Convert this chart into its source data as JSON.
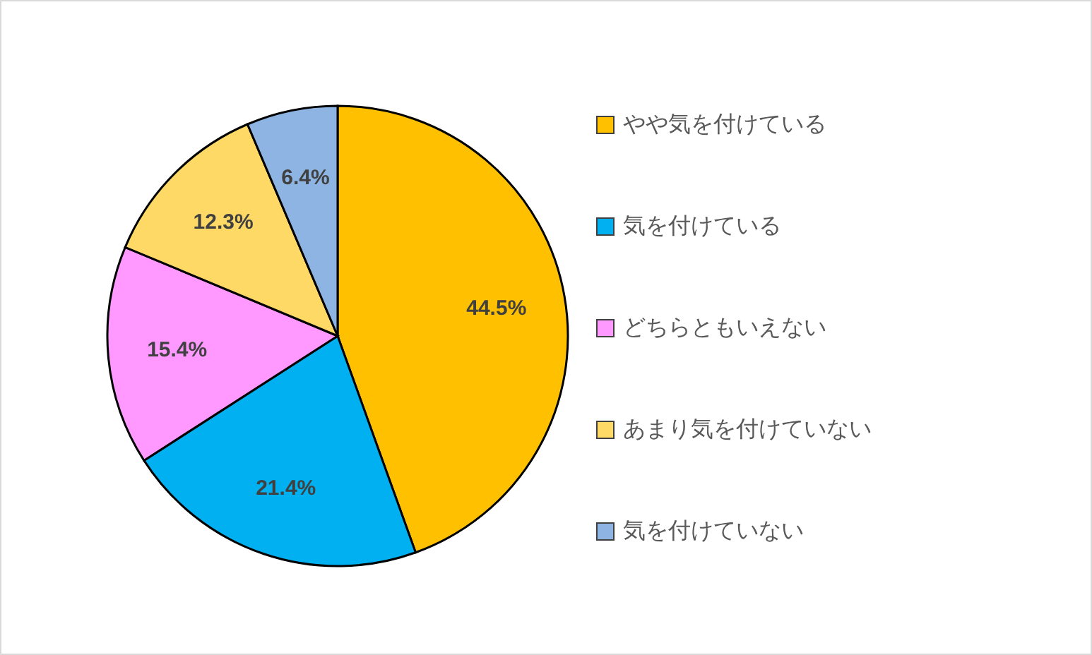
{
  "chart_data": {
    "type": "pie",
    "categories": [
      "やや気を付けている",
      "気を付けている",
      "どちらともいえない",
      "あまり気を付けていない",
      "気を付けていない"
    ],
    "values": [
      44.5,
      21.4,
      15.4,
      12.3,
      6.4
    ],
    "colors": [
      "#ffc000",
      "#00b0f0",
      "#ff99ff",
      "#ffd966",
      "#8db4e2"
    ],
    "value_labels": [
      "44.5%",
      "21.4%",
      "15.4%",
      "12.3%",
      "6.4%"
    ],
    "legend": "right"
  }
}
